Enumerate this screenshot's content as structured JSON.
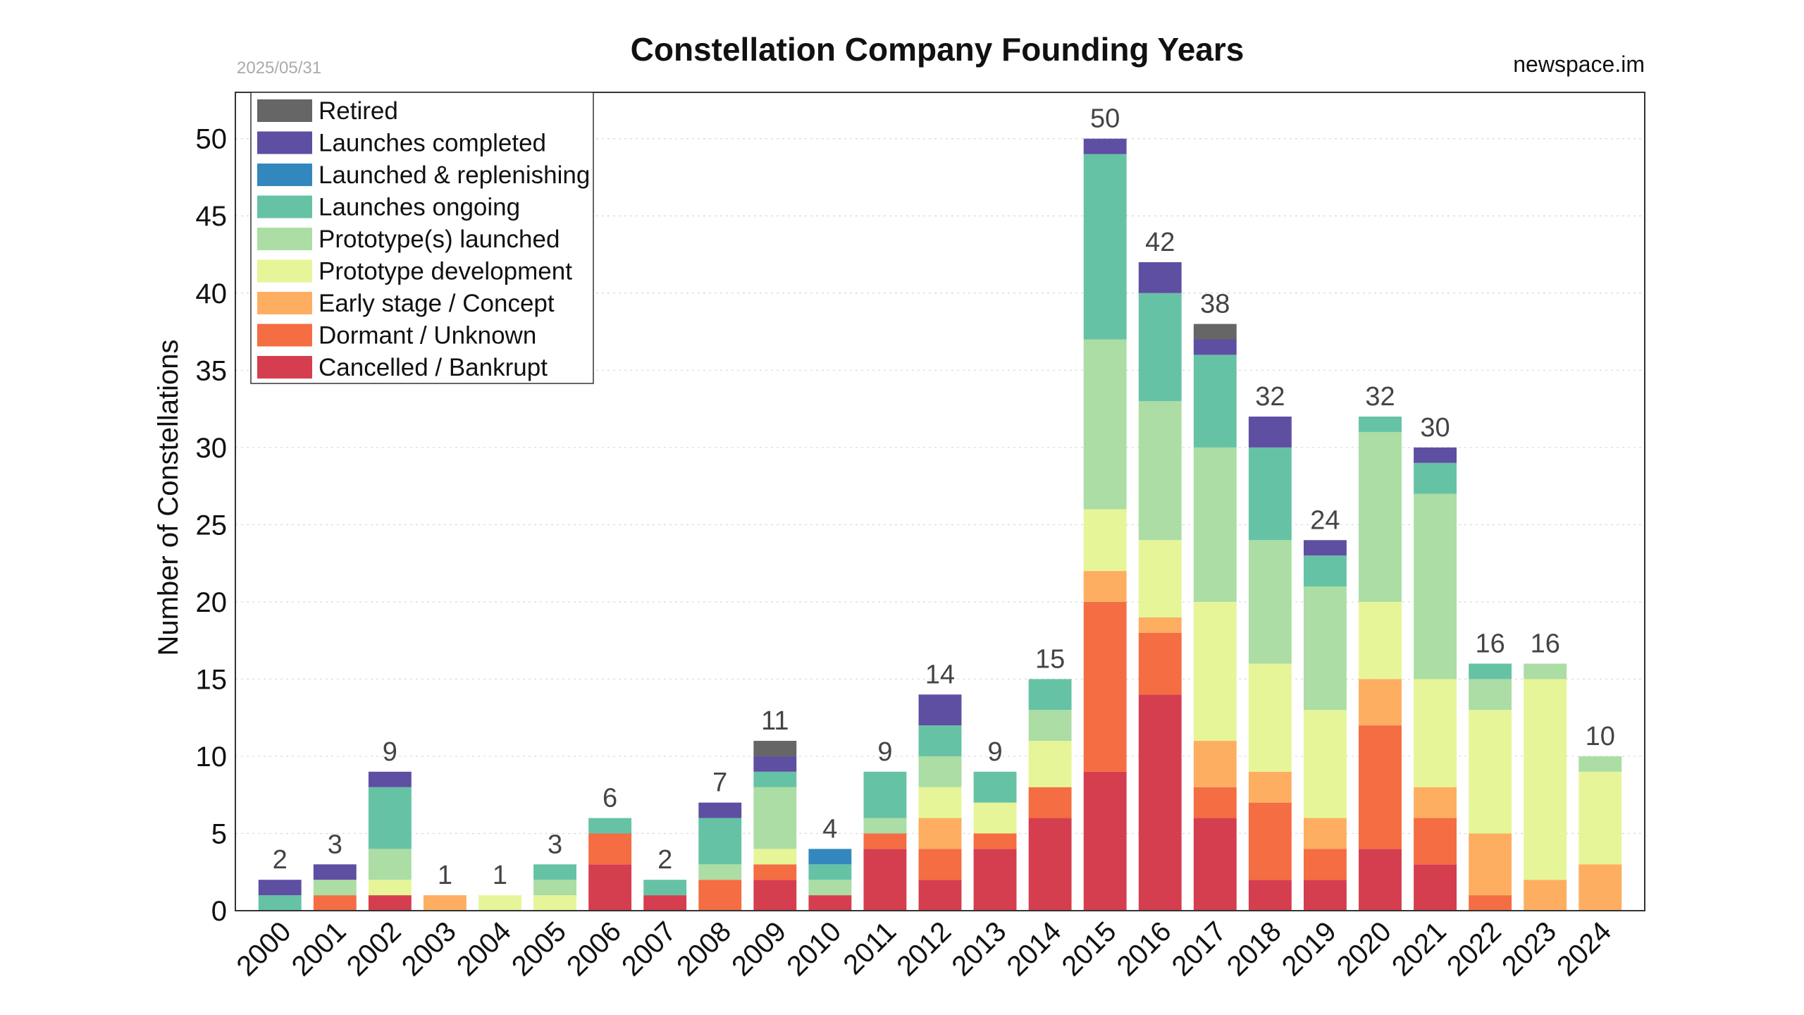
{
  "header": {
    "date": "2025/05/31",
    "source": "newspace.im"
  },
  "chart_data": {
    "type": "bar",
    "stacked": true,
    "title": "Constellation Company Founding Years",
    "xlabel": "",
    "ylabel": "Number of Constellations",
    "ylim": [
      0,
      53
    ],
    "yticks": [
      0,
      5,
      10,
      15,
      20,
      25,
      30,
      35,
      40,
      45,
      50
    ],
    "grid": "horizontal dotted",
    "legend_position": "top-left",
    "categories": [
      "2000",
      "2001",
      "2002",
      "2003",
      "2004",
      "2005",
      "2006",
      "2007",
      "2008",
      "2009",
      "2010",
      "2011",
      "2012",
      "2013",
      "2014",
      "2015",
      "2016",
      "2017",
      "2018",
      "2019",
      "2020",
      "2021",
      "2022",
      "2023",
      "2024"
    ],
    "series": [
      {
        "name": "Cancelled / Bankrupt",
        "color": "#d53e4f",
        "values": [
          0,
          0,
          1,
          0,
          0,
          0,
          3,
          1,
          0,
          2,
          1,
          4,
          2,
          4,
          6,
          9,
          14,
          6,
          2,
          2,
          4,
          3,
          0,
          0,
          0
        ]
      },
      {
        "name": "Dormant / Unknown",
        "color": "#f46d43",
        "values": [
          0,
          1,
          0,
          0,
          0,
          0,
          2,
          0,
          2,
          1,
          0,
          1,
          2,
          1,
          2,
          11,
          4,
          2,
          5,
          2,
          8,
          3,
          1,
          0,
          0
        ]
      },
      {
        "name": "Early stage / Concept",
        "color": "#fdae61",
        "values": [
          0,
          0,
          0,
          1,
          0,
          0,
          0,
          0,
          0,
          0,
          0,
          0,
          2,
          0,
          0,
          2,
          1,
          3,
          2,
          2,
          3,
          2,
          4,
          2,
          3
        ]
      },
      {
        "name": "Prototype development",
        "color": "#e6f598",
        "values": [
          0,
          0,
          1,
          0,
          1,
          1,
          0,
          0,
          0,
          1,
          0,
          0,
          2,
          2,
          3,
          4,
          5,
          9,
          7,
          7,
          5,
          7,
          8,
          13,
          6
        ]
      },
      {
        "name": "Prototype(s) launched",
        "color": "#abdda4",
        "values": [
          0,
          1,
          2,
          0,
          0,
          1,
          0,
          0,
          1,
          4,
          1,
          1,
          2,
          0,
          2,
          11,
          9,
          10,
          8,
          8,
          11,
          12,
          2,
          1,
          1
        ]
      },
      {
        "name": "Launches ongoing",
        "color": "#66c2a5",
        "values": [
          1,
          0,
          4,
          0,
          0,
          1,
          1,
          1,
          3,
          1,
          1,
          3,
          2,
          2,
          2,
          12,
          7,
          6,
          6,
          2,
          1,
          2,
          1,
          0,
          0
        ]
      },
      {
        "name": "Launched & replenishing",
        "color": "#3288bd",
        "values": [
          0,
          0,
          0,
          0,
          0,
          0,
          0,
          0,
          0,
          0,
          1,
          0,
          0,
          0,
          0,
          0,
          0,
          0,
          0,
          0,
          0,
          0,
          0,
          0,
          0
        ]
      },
      {
        "name": "Launches completed",
        "color": "#5e4fa2",
        "values": [
          1,
          1,
          1,
          0,
          0,
          0,
          0,
          0,
          1,
          1,
          0,
          0,
          2,
          0,
          0,
          1,
          2,
          1,
          2,
          1,
          0,
          1,
          0,
          0,
          0
        ]
      },
      {
        "name": "Retired",
        "color": "#666666",
        "values": [
          0,
          0,
          0,
          0,
          0,
          0,
          0,
          0,
          0,
          1,
          0,
          0,
          0,
          0,
          0,
          0,
          0,
          1,
          0,
          0,
          0,
          0,
          0,
          0,
          0
        ]
      }
    ],
    "totals": [
      2,
      3,
      9,
      1,
      1,
      3,
      6,
      2,
      7,
      11,
      4,
      9,
      14,
      9,
      15,
      50,
      42,
      38,
      32,
      24,
      32,
      30,
      16,
      16,
      10
    ]
  }
}
